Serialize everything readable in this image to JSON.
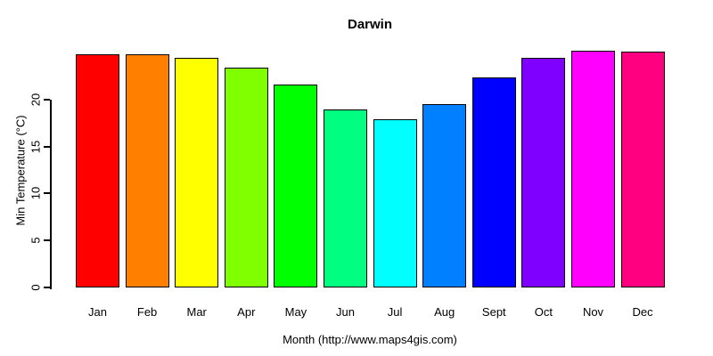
{
  "chart_data": {
    "type": "bar",
    "title": "Darwin",
    "xlabel": "Month (http://www.maps4gis.com)",
    "ylabel": "Min Temperature (°C)",
    "categories": [
      "Jan",
      "Feb",
      "Mar",
      "Apr",
      "May",
      "Jun",
      "Jul",
      "Aug",
      "Sept",
      "Oct",
      "Nov",
      "Dec"
    ],
    "values": [
      24.8,
      24.8,
      24.4,
      23.4,
      21.6,
      18.9,
      17.9,
      19.5,
      22.3,
      24.4,
      25.2,
      25.1
    ],
    "bar_colors": [
      "#FF0000",
      "#FF8000",
      "#FFFF00",
      "#80FF00",
      "#00FF00",
      "#00FF80",
      "#00FFFF",
      "#0080FF",
      "#0000FF",
      "#8000FF",
      "#FF00FF",
      "#FF0080"
    ],
    "bar_border_color": "#000000",
    "axis_color": "#000000",
    "background_color": "#FFFFFF",
    "yticks": [
      0,
      5,
      10,
      15,
      20
    ],
    "ylim": [
      0,
      25.5
    ],
    "grid": false,
    "legend": null
  }
}
